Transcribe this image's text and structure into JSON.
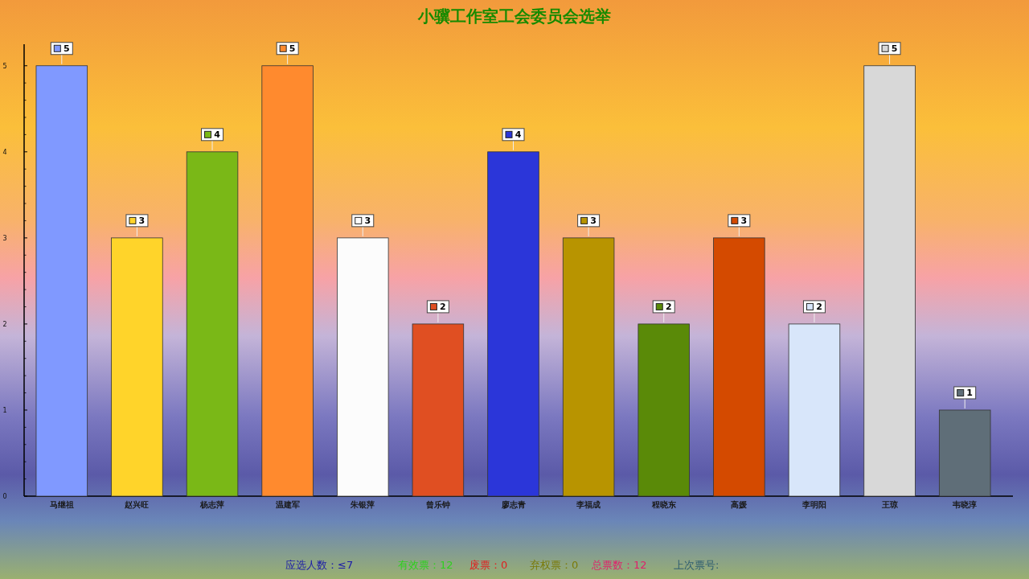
{
  "chart_data": {
    "type": "bar",
    "title": "小骥工作室工会委员会选举",
    "categories": [
      "马继祖",
      "赵兴旺",
      "杨志萍",
      "温建军",
      "朱银萍",
      "曾乐钟",
      "廖志青",
      "李福成",
      "程晓东",
      "高媛",
      "李明阳",
      "王琼",
      "韦晓淳"
    ],
    "values": [
      5,
      3,
      4,
      5,
      3,
      2,
      4,
      3,
      2,
      3,
      2,
      5,
      1
    ],
    "colors": [
      "#8099ff",
      "#ffd42a",
      "#7ab817",
      "#ff8a2e",
      "#fcfcfc",
      "#e04f22",
      "#2b36d9",
      "#b89400",
      "#5a8a08",
      "#d44a00",
      "#d8e6fa",
      "#d8d8d8",
      "#5f6e78"
    ],
    "ylim": [
      0,
      5.25
    ],
    "yticks": [
      0,
      1,
      2,
      3,
      4,
      5
    ],
    "data_labels": true,
    "annotations": [
      "应选人数：≤7",
      "有效票：12",
      "废票：0",
      "弃权票：0",
      "总票数：12",
      "上次票号:"
    ]
  }
}
